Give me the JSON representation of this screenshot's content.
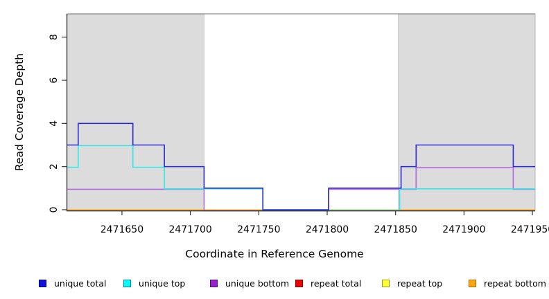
{
  "chart_data": {
    "type": "line",
    "subtype": "step-coverage",
    "title": "",
    "xlabel": "Coordinate in Reference Genome",
    "ylabel": "Read Coverage Depth",
    "xlim": [
      2471610,
      2471952
    ],
    "ylim": [
      0,
      9.08
    ],
    "xticks": [
      2471650,
      2471700,
      2471750,
      2471800,
      2471850,
      2471900,
      2471950
    ],
    "yticks": [
      0,
      2,
      4,
      6,
      8
    ],
    "grid": false,
    "legend_position": "bottom",
    "shaded_regions": [
      {
        "name": "repeat-region-left",
        "from": 2471610,
        "to": 2471710,
        "color": "#DCDCDC"
      },
      {
        "name": "repeat-region-right",
        "from": 2471852,
        "to": 2471952,
        "color": "#DCDCDC"
      }
    ],
    "series": [
      {
        "name": "unique total",
        "color": "#2B2BD5",
        "swatch": "#1010E0",
        "swatch_border": "#00008B",
        "points": [
          [
            2471610,
            3
          ],
          [
            2471618,
            4
          ],
          [
            2471658,
            3
          ],
          [
            2471681,
            2
          ],
          [
            2471710,
            1
          ],
          [
            2471753,
            0
          ],
          [
            2471801,
            1
          ],
          [
            2471854,
            2
          ],
          [
            2471865,
            3
          ],
          [
            2471936,
            2
          ]
        ]
      },
      {
        "name": "unique top",
        "color": "#35E8E8",
        "swatch": "#00FFFF",
        "swatch_border": "#008B9B",
        "points": [
          [
            2471610,
            2
          ],
          [
            2471618,
            3
          ],
          [
            2471658,
            2
          ],
          [
            2471681,
            1
          ],
          [
            2471753,
            0
          ],
          [
            2471853,
            1
          ]
        ]
      },
      {
        "name": "unique bottom",
        "color": "#B266E0",
        "swatch": "#9A1FD1",
        "swatch_border": "#5C0E80",
        "points": [
          [
            2471610,
            1
          ],
          [
            2471710,
            0
          ],
          [
            2471801,
            1
          ],
          [
            2471865,
            2
          ],
          [
            2471936,
            1
          ]
        ]
      },
      {
        "name": "repeat total",
        "color": "#DD2A2A",
        "swatch": "#EE0000",
        "swatch_border": "#8B0000",
        "points": [
          [
            2471610,
            0
          ]
        ]
      },
      {
        "name": "repeat top",
        "color": "#EEEE22",
        "swatch": "#FFFF33",
        "swatch_border": "#99991A",
        "points": [
          [
            2471610,
            0
          ]
        ]
      },
      {
        "name": "repeat bottom",
        "color": "#FF9E1B",
        "swatch": "#FFA510",
        "swatch_border": "#B36B00",
        "points": [
          [
            2471610,
            0
          ]
        ]
      }
    ]
  }
}
